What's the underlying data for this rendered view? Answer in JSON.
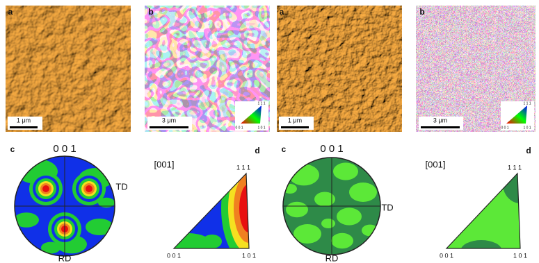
{
  "figures": [
    {
      "panel_a": {
        "label": "a",
        "scale_bar": "1 μm"
      },
      "panel_b": {
        "label": "b",
        "scale_bar": "3 μm",
        "key_labels": [
          "1 1 1",
          "0 0 1",
          "1 0 1"
        ]
      },
      "panel_c": {
        "label": "c",
        "top": "0 0 1",
        "right": "TD",
        "bottom": "RD"
      },
      "panel_d": {
        "label": "d",
        "direction": "[001]",
        "corners": [
          "1 1 1",
          "0 0 1",
          "1 0 1"
        ]
      }
    },
    {
      "panel_a": {
        "label": "a",
        "scale_bar": "1 μm"
      },
      "panel_b": {
        "label": "b",
        "scale_bar": "3 μm",
        "key_labels": [
          "1 1 1",
          "0 0 1",
          "1 0 1"
        ]
      },
      "panel_c": {
        "label": "c",
        "top": "0 0 1",
        "right": "TD",
        "bottom": "RD"
      },
      "panel_d": {
        "label": "d",
        "direction": "[001]",
        "corners": [
          "1 1 1",
          "0 0 1",
          "1 0 1"
        ]
      }
    }
  ]
}
